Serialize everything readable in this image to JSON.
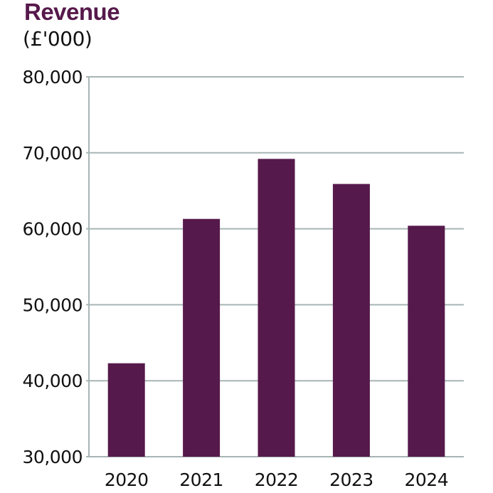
{
  "chart_data": {
    "type": "bar",
    "title": "Revenue",
    "subtitle": "(£'000)",
    "xlabel": "",
    "ylabel": "",
    "categories": [
      "2020",
      "2021",
      "2022",
      "2023",
      "2024"
    ],
    "values": [
      42300,
      61300,
      69200,
      65900,
      60400
    ],
    "ylim": [
      30000,
      80000
    ],
    "yticks": [
      30000,
      40000,
      50000,
      60000,
      70000,
      80000
    ],
    "ytick_labels": [
      "30,000",
      "40,000",
      "50,000",
      "60,000",
      "70,000",
      "80,000"
    ],
    "grid": true,
    "legend": "none",
    "colors": {
      "bar": "#56194b",
      "grid": "#a8b5b5",
      "title": "#56194b",
      "text": "#111111"
    }
  }
}
